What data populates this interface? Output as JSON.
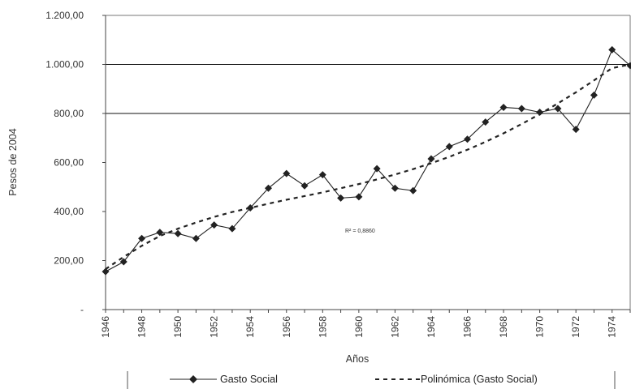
{
  "chart_data": {
    "type": "line",
    "title": "",
    "xlabel": "Años",
    "ylabel": "Pesos de 2004",
    "xlim": [
      1946,
      1975
    ],
    "ylim": [
      0,
      1200
    ],
    "y_ticks": [
      0,
      200,
      400,
      600,
      800,
      1000,
      1200
    ],
    "y_tick_labels": [
      "-",
      "200,00",
      "400,00",
      "600,00",
      "800,00",
      "1.000,00",
      "1.200,00"
    ],
    "x_ticks": [
      1946,
      1948,
      1950,
      1952,
      1954,
      1956,
      1958,
      1960,
      1962,
      1964,
      1966,
      1968,
      1970,
      1972,
      1974
    ],
    "x_tick_labels": [
      "1946",
      "1948",
      "1950",
      "1952",
      "1954",
      "1956",
      "1958",
      "1960",
      "1962",
      "1964",
      "1966",
      "1968",
      "1970",
      "1972",
      "1974"
    ],
    "gridlines_y": [
      800,
      1000
    ],
    "x": [
      1946,
      1947,
      1948,
      1949,
      1950,
      1951,
      1952,
      1953,
      1954,
      1955,
      1956,
      1957,
      1958,
      1959,
      1960,
      1961,
      1962,
      1963,
      1964,
      1965,
      1966,
      1967,
      1968,
      1969,
      1970,
      1971,
      1972,
      1973,
      1974,
      1975
    ],
    "series": [
      {
        "name": "Gasto Social",
        "style": "solid-diamond",
        "color": "#222222",
        "values": [
          155,
          195,
          290,
          315,
          310,
          290,
          345,
          330,
          415,
          495,
          555,
          505,
          550,
          455,
          460,
          575,
          495,
          485,
          615,
          665,
          695,
          765,
          825,
          820,
          805,
          820,
          735,
          875,
          1060,
          995
        ]
      },
      {
        "name": "Polinómica (Gasto Social)",
        "style": "dashed",
        "color": "#222222",
        "values": [
          165,
          215,
          260,
          300,
          330,
          355,
          378,
          398,
          415,
          432,
          448,
          463,
          478,
          495,
          512,
          531,
          551,
          573,
          597,
          623,
          652,
          684,
          719,
          757,
          797,
          841,
          886,
          935,
          985,
          1000
        ]
      }
    ],
    "annotation": "R² = 0,8860",
    "legend_position": "bottom"
  }
}
